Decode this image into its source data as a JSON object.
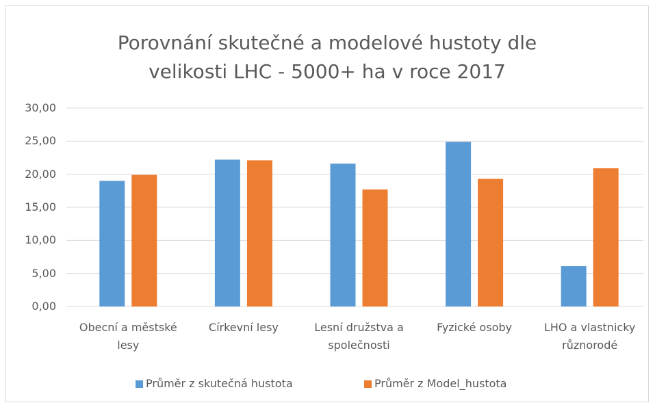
{
  "chart_data": {
    "type": "bar",
    "title": "Porovnání skutečné a modelové hustoty dle velikosti LHC - 5000+ ha v roce 2017",
    "categories": [
      "Obecní a městské lesy",
      "Církevní lesy",
      "Lesní družstva a společnosti",
      "Fyzické osoby",
      "LHO a vlastnicky různorodé"
    ],
    "series": [
      {
        "name": "Průměr z skutečná hustota",
        "color": "#5b9bd5",
        "values": [
          19.0,
          22.2,
          21.6,
          24.9,
          6.1
        ]
      },
      {
        "name": "Průměr z Model_hustota",
        "color": "#ed7d31",
        "values": [
          19.9,
          22.1,
          17.7,
          19.3,
          20.9
        ]
      }
    ],
    "ylim": [
      0,
      30
    ],
    "yticks": [
      {
        "value": 0,
        "label": "0,00"
      },
      {
        "value": 5,
        "label": "5,00"
      },
      {
        "value": 10,
        "label": "10,00"
      },
      {
        "value": 15,
        "label": "15,00"
      },
      {
        "value": 20,
        "label": "20,00"
      },
      {
        "value": 25,
        "label": "25,00"
      },
      {
        "value": 30,
        "label": "30,00"
      }
    ],
    "grid": true,
    "legend": "bottom"
  }
}
